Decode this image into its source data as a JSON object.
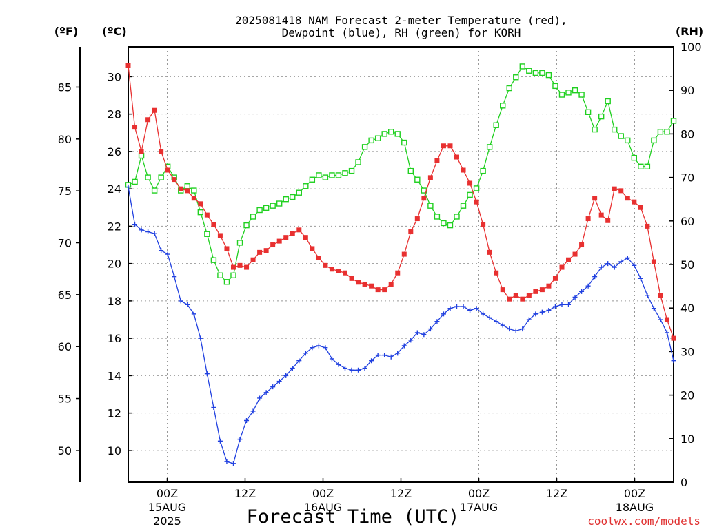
{
  "chart_data": {
    "type": "line",
    "title_line1": "2025081418 NAM Forecast 2-meter Temperature (red),",
    "title_line2": "Dewpoint (blue), RH (green) for KORH",
    "unit_f": "(ºF)",
    "unit_c": "(ºC)",
    "unit_rh": "(RH)",
    "xlabel": "Forecast Time (UTC)",
    "credit": "coolwx.com/models",
    "x_hours_start": 0,
    "x_hours_end": 84,
    "ylim_c": [
      8.3,
      31.6
    ],
    "ylim_rh": [
      0,
      100
    ],
    "grid": true,
    "colors": {
      "temperature": "#e83030",
      "dewpoint": "#2040e0",
      "rh": "#20d020",
      "grid": "#999999"
    },
    "ticks_c": [
      "10",
      "12",
      "14",
      "16",
      "18",
      "20",
      "22",
      "24",
      "26",
      "28",
      "30"
    ],
    "ticks_f": [
      "50",
      "55",
      "60",
      "65",
      "70",
      "75",
      "80",
      "85"
    ],
    "ticks_rh": [
      "0",
      "10",
      "20",
      "30",
      "40",
      "50",
      "60",
      "70",
      "80",
      "90",
      "100"
    ],
    "x_ticks": [
      {
        "hour": 6,
        "label": "00Z",
        "date": "15AUG",
        "year": "2025"
      },
      {
        "hour": 18,
        "label": "12Z",
        "date": "",
        "year": ""
      },
      {
        "hour": 30,
        "label": "00Z",
        "date": "16AUG",
        "year": ""
      },
      {
        "hour": 42,
        "label": "12Z",
        "date": "",
        "year": ""
      },
      {
        "hour": 54,
        "label": "00Z",
        "date": "17AUG",
        "year": ""
      },
      {
        "hour": 66,
        "label": "12Z",
        "date": "",
        "year": ""
      },
      {
        "hour": 78,
        "label": "00Z",
        "date": "18AUG",
        "year": ""
      }
    ],
    "series": [
      {
        "name": "Temperature",
        "values": [
          30.6,
          27.3,
          26.0,
          27.7,
          28.2,
          26.0,
          25.0,
          24.5,
          24.0,
          23.9,
          23.5,
          23.2,
          22.6,
          22.1,
          21.5,
          20.8,
          19.8,
          19.9,
          19.8,
          20.2,
          20.6,
          20.7,
          21.0,
          21.2,
          21.4,
          21.6,
          21.8,
          21.4,
          20.8,
          20.3,
          19.9,
          19.7,
          19.6,
          19.5,
          19.2,
          19.0,
          18.9,
          18.8,
          18.6,
          18.6,
          18.9,
          19.5,
          20.5,
          21.7,
          22.4,
          23.5,
          24.6,
          25.5,
          26.3,
          26.3,
          25.7,
          25.0,
          24.3,
          23.3,
          22.1,
          20.6,
          19.5,
          18.6,
          18.1,
          18.3,
          18.1,
          18.3,
          18.5,
          18.6,
          18.8,
          19.2,
          19.8,
          20.2,
          20.5,
          21.0,
          22.4,
          23.5,
          22.6,
          22.3,
          24.0,
          23.9,
          23.5,
          23.3,
          23.0,
          22.0,
          20.1,
          18.3,
          17.0,
          16.0
        ],
        "rh": [
          68.3,
          69.0,
          75.0,
          70.0,
          67.0,
          70.0,
          72.5,
          70.0,
          67.0,
          68.0,
          67.0,
          62.0,
          57.0,
          51.0,
          47.5,
          46.0,
          47.5,
          55.0,
          59.0,
          61.0,
          62.5,
          63.0,
          63.5,
          64.0,
          65.0,
          65.5,
          66.5,
          68.0,
          69.5,
          70.5,
          70.0,
          70.5,
          70.5,
          71.0,
          71.5,
          73.5,
          77.0,
          78.5,
          79.0,
          80.0,
          80.5,
          80.0,
          78.0,
          71.5,
          69.5,
          67.0,
          63.5,
          61.0,
          59.5,
          59.0,
          61.0,
          63.5,
          66.0,
          67.5,
          71.5,
          77.0,
          82.0,
          86.5,
          90.5,
          93.0,
          95.5,
          94.5,
          94.0,
          94.0,
          93.5,
          91.0,
          89.0,
          89.5,
          90.0,
          89.0,
          85.0,
          81.0,
          84.0,
          87.5,
          81.0,
          79.5,
          78.5,
          74.5,
          72.5,
          72.5,
          78.5,
          80.5,
          80.5,
          83.0
        ]
      },
      {
        "name": "Dewpoint",
        "values": [
          24.1,
          22.1,
          21.8,
          21.7,
          21.6,
          20.7,
          20.5,
          19.3,
          18.0,
          17.8,
          17.3,
          16.0,
          14.1,
          12.3,
          10.5,
          9.4,
          9.3,
          10.6,
          11.6,
          12.1,
          12.8,
          13.1,
          13.4,
          13.7,
          14.0,
          14.4,
          14.8,
          15.2,
          15.5,
          15.6,
          15.5,
          14.9,
          14.6,
          14.4,
          14.3,
          14.3,
          14.4,
          14.8,
          15.1,
          15.1,
          15.0,
          15.2,
          15.6,
          15.9,
          16.3,
          16.2,
          16.5,
          16.9,
          17.3,
          17.6,
          17.7,
          17.7,
          17.5,
          17.6,
          17.3,
          17.1,
          16.9,
          16.7,
          16.5,
          16.4,
          16.5,
          17.0,
          17.3,
          17.4,
          17.5,
          17.7,
          17.8,
          17.8,
          18.2,
          18.5,
          18.8,
          19.3,
          19.8,
          20.0,
          19.8,
          20.1,
          20.3,
          19.9,
          19.2,
          18.3,
          17.6,
          17.0,
          16.3,
          14.8
        ]
      }
    ]
  }
}
